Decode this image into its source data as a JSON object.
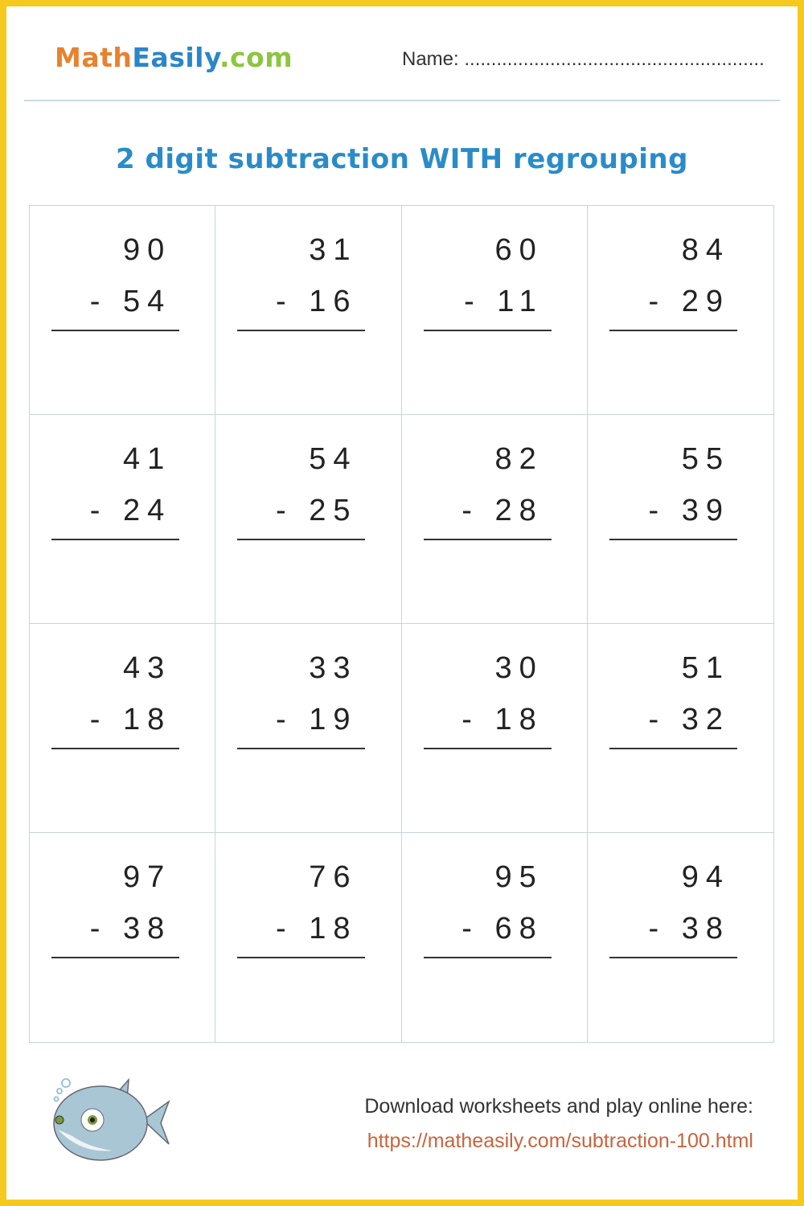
{
  "header": {
    "logo": {
      "part1": "Math",
      "part2": "Easily",
      "part3": ".com"
    },
    "name_label": "Name: ........................................................"
  },
  "title": "2 digit subtraction WITH regrouping",
  "problems": [
    {
      "top": "90",
      "bottom": "- 54"
    },
    {
      "top": "31",
      "bottom": "- 16"
    },
    {
      "top": "60",
      "bottom": "- 11"
    },
    {
      "top": "84",
      "bottom": "- 29"
    },
    {
      "top": "41",
      "bottom": "- 24"
    },
    {
      "top": "54",
      "bottom": "- 25"
    },
    {
      "top": "82",
      "bottom": "- 28"
    },
    {
      "top": "55",
      "bottom": "- 39"
    },
    {
      "top": "43",
      "bottom": "- 18"
    },
    {
      "top": "33",
      "bottom": "- 19"
    },
    {
      "top": "30",
      "bottom": "- 18"
    },
    {
      "top": "51",
      "bottom": "- 32"
    },
    {
      "top": "97",
      "bottom": "- 38"
    },
    {
      "top": "76",
      "bottom": "- 18"
    },
    {
      "top": "95",
      "bottom": "- 68"
    },
    {
      "top": "94",
      "bottom": "- 38"
    }
  ],
  "footer": {
    "text": "Download worksheets and play online here:",
    "link": "https://matheasily.com/subtraction-100.html",
    "mascot_icon": "shark-fish-icon"
  },
  "colors": {
    "border": "#f6c91e",
    "title": "#2a8bc9",
    "link": "#c8643c"
  }
}
